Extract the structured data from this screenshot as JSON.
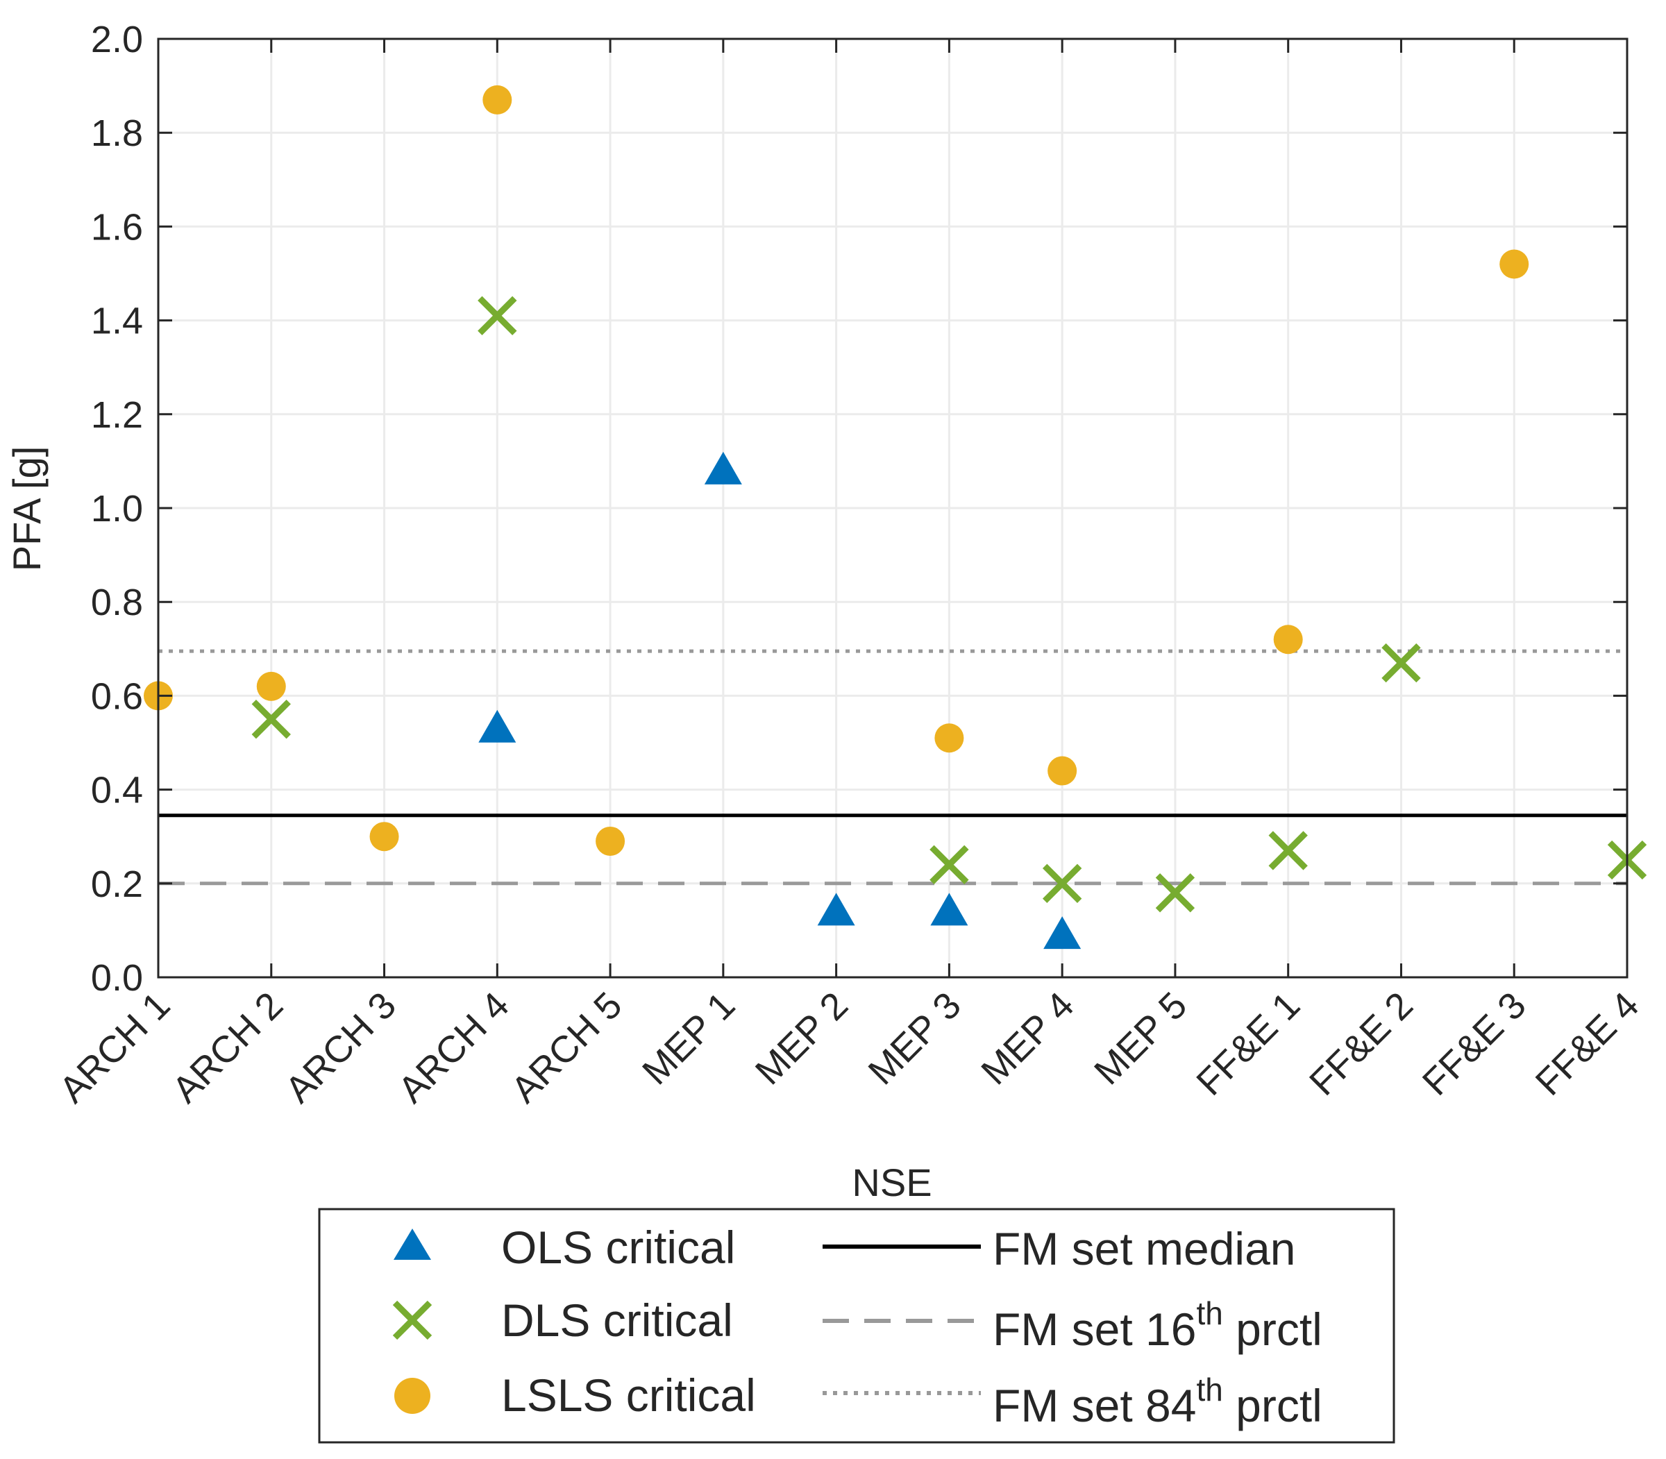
{
  "chart_data": {
    "type": "scatter",
    "xlabel": "NSE",
    "ylabel": "PFA [g]",
    "categories": [
      "ARCH 1",
      "ARCH 2",
      "ARCH 3",
      "ARCH 4",
      "ARCH 5",
      "MEP 1",
      "MEP 2",
      "MEP 3",
      "MEP 4",
      "MEP 5",
      "FF&E 1",
      "FF&E 2",
      "FF&E 3",
      "FF&E 4"
    ],
    "ylim": [
      0,
      2.0
    ],
    "yticks": [
      "0.0",
      "0.2",
      "0.4",
      "0.6",
      "0.8",
      "1.0",
      "1.2",
      "1.4",
      "1.6",
      "1.8",
      "2.0"
    ],
    "grid": true,
    "series": [
      {
        "name": "OLS critical",
        "marker": "triangle",
        "color": "#0072BD",
        "points": [
          {
            "x": 4,
            "y": 0.53
          },
          {
            "x": 6,
            "y": 1.08
          },
          {
            "x": 7,
            "y": 0.14
          },
          {
            "x": 8,
            "y": 0.14
          },
          {
            "x": 9,
            "y": 0.09
          }
        ]
      },
      {
        "name": "DLS critical",
        "marker": "x",
        "color": "#77AC30",
        "points": [
          {
            "x": 2,
            "y": 0.55
          },
          {
            "x": 4,
            "y": 1.41
          },
          {
            "x": 8,
            "y": 0.24
          },
          {
            "x": 9,
            "y": 0.2
          },
          {
            "x": 10,
            "y": 0.18
          },
          {
            "x": 11,
            "y": 0.27
          },
          {
            "x": 12,
            "y": 0.67
          },
          {
            "x": 14,
            "y": 0.25
          }
        ]
      },
      {
        "name": "LSLS critical",
        "marker": "circle",
        "color": "#EDB120",
        "points": [
          {
            "x": 1,
            "y": 0.6
          },
          {
            "x": 2,
            "y": 0.62
          },
          {
            "x": 3,
            "y": 0.3
          },
          {
            "x": 4,
            "y": 1.87
          },
          {
            "x": 5,
            "y": 0.29
          },
          {
            "x": 8,
            "y": 0.51
          },
          {
            "x": 9,
            "y": 0.44
          },
          {
            "x": 11,
            "y": 0.72
          },
          {
            "x": 13,
            "y": 1.52
          }
        ]
      }
    ],
    "reference_lines": [
      {
        "name": "FM set median",
        "value": 0.345,
        "style": "solid",
        "color": "#000000"
      },
      {
        "name": "FM set 16th prctl",
        "value": 0.2,
        "style": "dashed",
        "color": "#999999"
      },
      {
        "name": "FM set 84th prctl",
        "value": 0.695,
        "style": "dotted",
        "color": "#999999"
      }
    ],
    "legend": {
      "placement": "bottom",
      "entries": {
        "ols": "OLS critical",
        "dls": "DLS critical",
        "lsls": "LSLS critical",
        "median": "FM set median",
        "p16_prefix": "FM set 16",
        "p16_sup": "th",
        "p16_suffix": " prctl",
        "p84_prefix": "FM set 84",
        "p84_sup": "th",
        "p84_suffix": " prctl"
      }
    }
  }
}
